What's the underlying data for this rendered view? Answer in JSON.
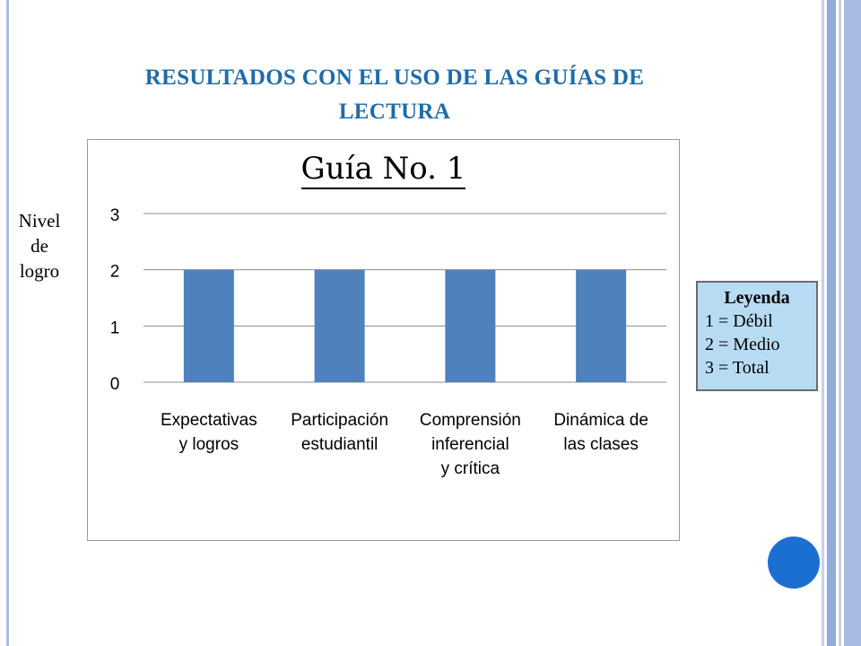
{
  "slide": {
    "title_line1": "RESULTADOS CON EL USO DE LAS GUÍAS DE",
    "title_line2": "LECTURA",
    "side_label_lines": [
      "Nivel",
      "de",
      "logro"
    ]
  },
  "legend": {
    "title": "Leyenda",
    "items": [
      "1 = Débil",
      "2 = Medio",
      "3 = Total"
    ]
  },
  "colors": {
    "title": "#1f6ba8",
    "bar": "#4f81bd",
    "legend_bg": "#b7dbf2",
    "accent_circle": "#1b6fd1"
  },
  "chart_data": {
    "type": "bar",
    "title": "Guía No. 1",
    "categories": [
      [
        "Expectativas",
        "y logros"
      ],
      [
        "Participación",
        "estudiantil"
      ],
      [
        "Comprensión",
        "inferencial",
        "y crítica"
      ],
      [
        "Dinámica de",
        "las clases"
      ]
    ],
    "values": [
      2,
      2,
      2,
      2
    ],
    "yticks": [
      "0",
      "1",
      "2",
      "3"
    ],
    "ylim": [
      0,
      3
    ],
    "grid": true,
    "xlabel": "",
    "ylabel": ""
  }
}
